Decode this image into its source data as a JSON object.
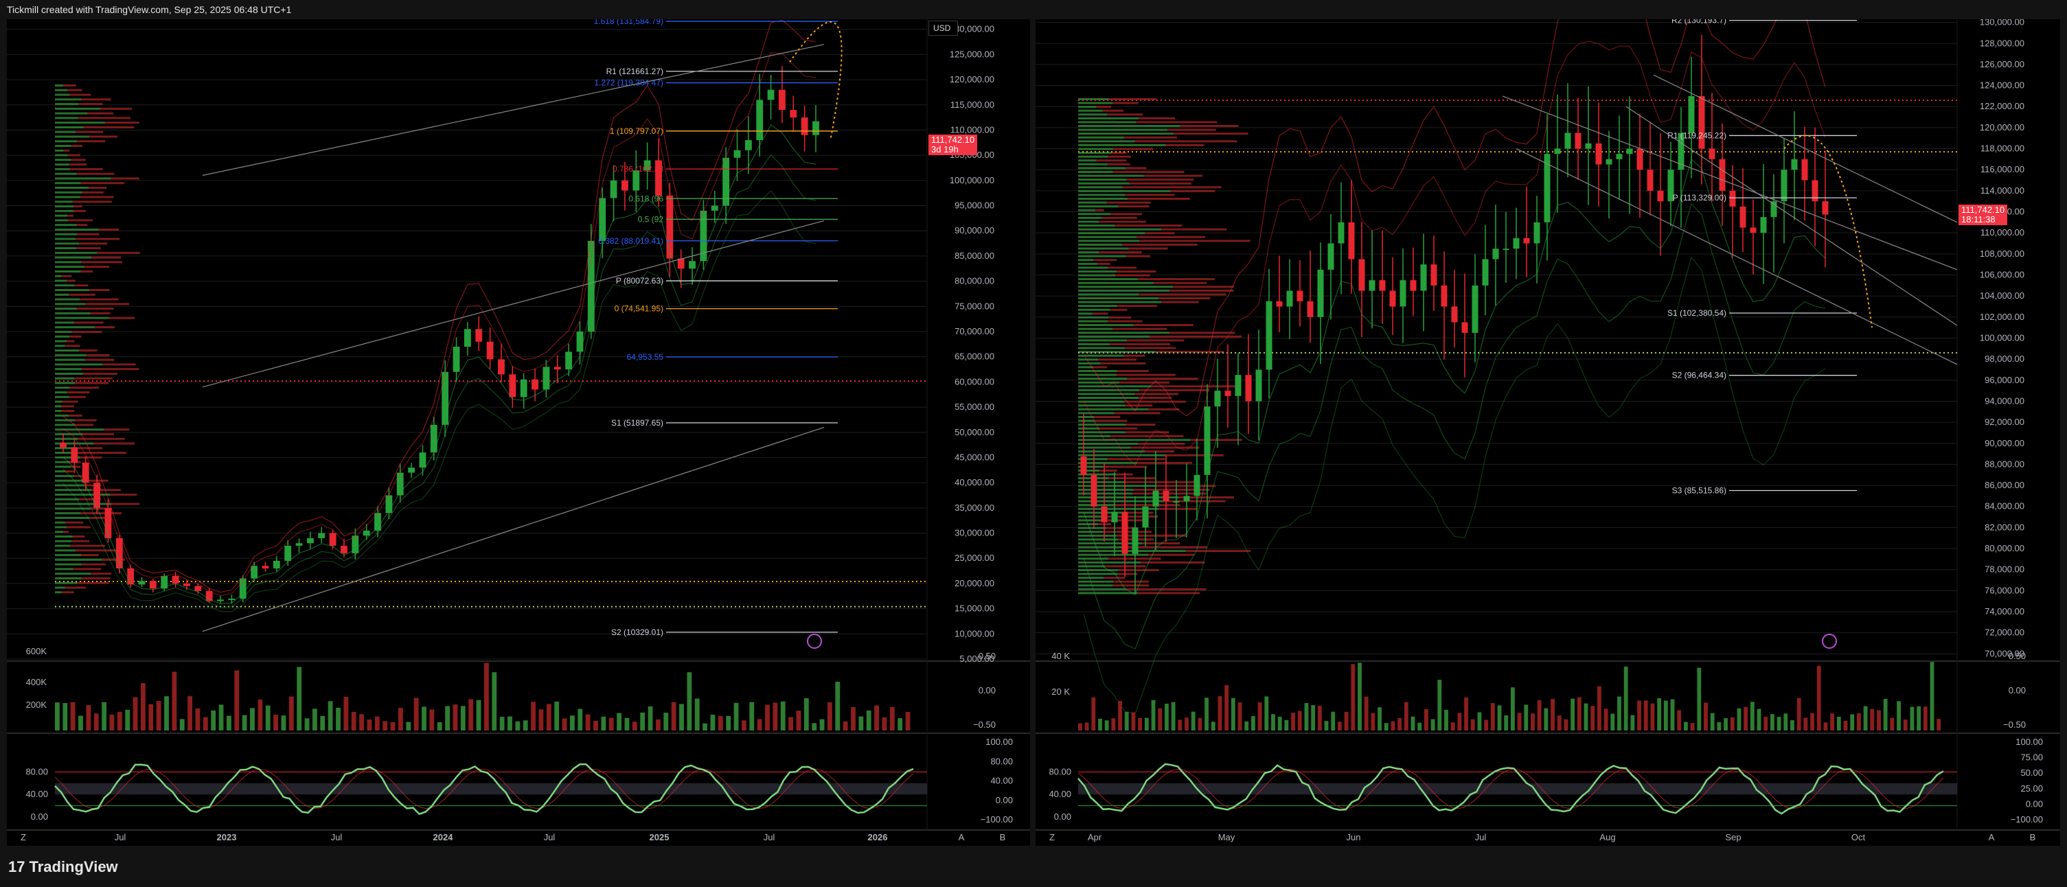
{
  "header": {
    "caption": "Tickmill created with TradingView.com, Sep 25, 2025 06:48 UTC+1"
  },
  "footer": {
    "brand": "TradingView",
    "brand_mark": "17"
  },
  "colors": {
    "up": "#26a23a",
    "down": "#e8262f",
    "bg": "#000000",
    "grid": "#1e1e1e",
    "pivot_white": "#d1d4dc",
    "fib_orange": "#f7a21b",
    "fib_blue": "#2962ff",
    "fib_green": "#4caf50",
    "badge": "#f23645"
  },
  "chart_data": [
    {
      "type": "candlestick",
      "panel": "left",
      "currency": "USD",
      "y_ticks": [
        "130,000.00",
        "125,000.00",
        "120,000.00",
        "115,000.00",
        "110,000.00",
        "105,000.00",
        "100,000.00",
        "95,000.00",
        "90,000.00",
        "85,000.00",
        "80,000.00",
        "75,000.00",
        "70,000.00",
        "65,000.00",
        "60,000.00",
        "55,000.00",
        "50,000.00",
        "45,000.00",
        "40,000.00",
        "35,000.00",
        "30,000.00",
        "25,000.00",
        "20,000.00",
        "15,000.00",
        "10,000.00",
        "5,000.00"
      ],
      "ylim": [
        5000,
        132000
      ],
      "x_ticks": [
        "Jul",
        "2023",
        "Jul",
        "2024",
        "Jul",
        "2025",
        "Jul",
        "2026"
      ],
      "last_price": "111,742.10",
      "countdown": "3d 19h",
      "levels": [
        {
          "label": "1.618 (131,584.79)",
          "value": 131584.79,
          "color": "#2962ff"
        },
        {
          "label": "R1 (121661.27)",
          "value": 121661.27,
          "color": "#d1d4dc"
        },
        {
          "label": "1.272 (119,384.47)",
          "value": 119384.47,
          "color": "#2962ff"
        },
        {
          "label": "1 (109,797.07)",
          "value": 109797.07,
          "color": "#f7a21b"
        },
        {
          "label": "0.786 (102,28",
          "value": 102280,
          "color": "#e8262f"
        },
        {
          "label": "0.618 (96",
          "value": 96400,
          "color": "#4caf50"
        },
        {
          "label": "0.5 (92",
          "value": 92300,
          "color": "#4caf50"
        },
        {
          "label": "0.382 (88,019.41)",
          "value": 88019.41,
          "color": "#2962ff"
        },
        {
          "label": "P (80072.63)",
          "value": 80072.63,
          "color": "#d1d4dc"
        },
        {
          "label": "0 (74,541.95)",
          "value": 74541.95,
          "color": "#f7a21b"
        },
        {
          "label": "64,953.55",
          "value": 64953.55,
          "color": "#2962ff"
        },
        {
          "label": "S1 (51897.65)",
          "value": 51897.65,
          "color": "#d1d4dc"
        },
        {
          "label": "S2 (10329.01)",
          "value": 10329.01,
          "color": "#d1d4dc"
        }
      ],
      "volume_ticks": [
        "600K",
        "400K",
        "200K"
      ],
      "vol_osc_ticks": [
        "0.50",
        "0.00",
        "−0.50"
      ],
      "stoch_ticks": [
        "80.00",
        "40.00",
        "0.00"
      ],
      "stoch_right_ticks": [
        "100.00",
        "80.00",
        "40.00",
        "0.00",
        "−100.00"
      ],
      "closes": [
        47000,
        44000,
        40000,
        35000,
        29000,
        23000,
        19800,
        20500,
        19000,
        21500,
        20000,
        19500,
        18500,
        16500,
        16800,
        17000,
        21000,
        23500,
        23000,
        24500,
        27500,
        28000,
        29000,
        30000,
        27500,
        26000,
        29500,
        30500,
        34000,
        37500,
        42000,
        43000,
        46000,
        51500,
        62000,
        67000,
        70500,
        68000,
        64500,
        61500,
        57000,
        60500,
        58500,
        63000,
        62500,
        66000,
        70000,
        88000,
        96500,
        100000,
        98000,
        102000,
        104000,
        97000,
        84500,
        82500,
        84000,
        94000,
        95000,
        104500,
        106000,
        108000,
        116000,
        118000,
        114000,
        112500,
        109000,
        111742
      ]
    },
    {
      "type": "candlestick",
      "panel": "right",
      "y_ticks": [
        "130,000.00",
        "128,000.00",
        "126,000.00",
        "124,000.00",
        "122,000.00",
        "120,000.00",
        "118,000.00",
        "116,000.00",
        "114,000.00",
        "112,000.00",
        "110,000.00",
        "108,000.00",
        "106,000.00",
        "104,000.00",
        "102,000.00",
        "100,000.00",
        "98,000.00",
        "96,000.00",
        "94,000.00",
        "92,000.00",
        "90,000.00",
        "88,000.00",
        "86,000.00",
        "84,000.00",
        "82,000.00",
        "80,000.00",
        "78,000.00",
        "76,000.00",
        "74,000.00",
        "72,000.00",
        "70,000.00"
      ],
      "ylim": [
        69500,
        130300
      ],
      "x_ticks": [
        "Apr",
        "May",
        "Jun",
        "Jul",
        "Aug",
        "Sep",
        "Oct"
      ],
      "last_price": "111,742.10",
      "countdown": "18:11:38",
      "levels": [
        {
          "label": "R2 (130,193.7)",
          "value": 130193.7,
          "color": "#d1d4dc"
        },
        {
          "label": "R1 (119,245.22)",
          "value": 119245.22,
          "color": "#d1d4dc"
        },
        {
          "label": "P (113,329.00)",
          "value": 113329.0,
          "color": "#d1d4dc"
        },
        {
          "label": "S1 (102,380.54)",
          "value": 102380.54,
          "color": "#d1d4dc"
        },
        {
          "label": "S2 (96,464.34)",
          "value": 96464.34,
          "color": "#d1d4dc"
        },
        {
          "label": "S3 (85,515.86)",
          "value": 85515.86,
          "color": "#d1d4dc"
        }
      ],
      "volume_ticks": [
        "40 K",
        "20 K"
      ],
      "vol_osc_ticks": [
        "0.50",
        "0.00",
        "−0.50"
      ],
      "stoch_ticks": [
        "80.00",
        "40.00",
        "0.00"
      ],
      "stoch_right_ticks": [
        "100.00",
        "75.00",
        "50.00",
        "25.00",
        "0.00",
        "−100.00"
      ],
      "closes": [
        87000,
        84000,
        82500,
        83500,
        79500,
        82000,
        84000,
        85500,
        84500,
        84500,
        85000,
        87000,
        93500,
        95000,
        94500,
        96500,
        94000,
        97000,
        103500,
        103000,
        104500,
        103500,
        102000,
        106500,
        109000,
        111000,
        107500,
        104500,
        105500,
        104500,
        103000,
        105500,
        104500,
        107000,
        105000,
        103000,
        101500,
        100500,
        105000,
        107500,
        108500,
        108500,
        109500,
        109000,
        111000,
        117500,
        118000,
        119500,
        118000,
        118500,
        116500,
        117000,
        117500,
        118000,
        116000,
        114000,
        113000,
        116000,
        119500,
        123000,
        118000,
        117000,
        114000,
        112500,
        110500,
        110000,
        111500,
        113000,
        116000,
        117000,
        115000,
        113000,
        111742
      ]
    }
  ]
}
